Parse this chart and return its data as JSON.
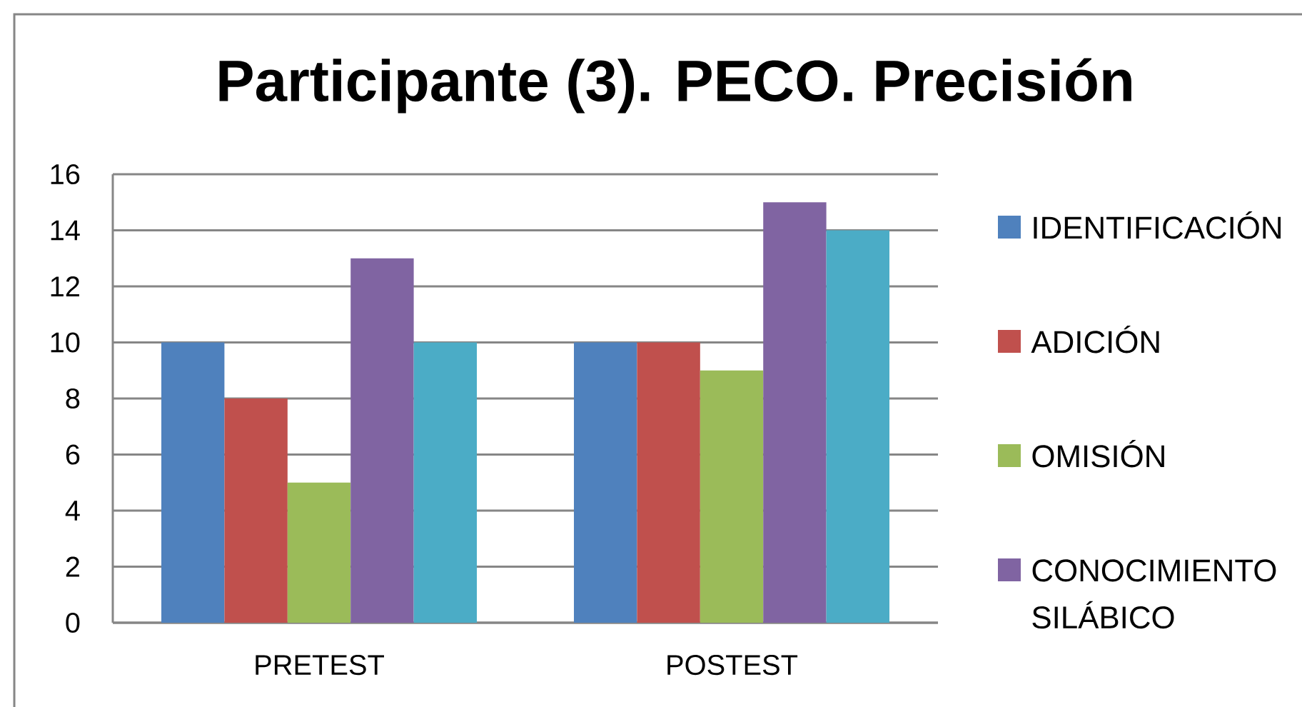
{
  "chart_data": {
    "type": "bar",
    "title": "Participante (3). PECO. Precisión",
    "categories": [
      "PRETEST",
      "POSTEST"
    ],
    "series": [
      {
        "name": "IDENTIFICACIÓN",
        "color": "#4f81bd",
        "values": [
          10,
          10
        ]
      },
      {
        "name": "ADICIÓN",
        "color": "#c0504d",
        "values": [
          8,
          10
        ]
      },
      {
        "name": "OMISIÓN",
        "color": "#9bbb59",
        "values": [
          5,
          9
        ]
      },
      {
        "name": "CONOCIMIENTO SILÁBICO",
        "color": "#8064a2",
        "values": [
          13,
          15
        ]
      },
      {
        "color": "#4bacc6",
        "values": [
          10,
          14
        ]
      }
    ],
    "ylim": [
      0,
      16
    ],
    "yticks": [
      0,
      2,
      4,
      6,
      8,
      10,
      12,
      14,
      16
    ],
    "grid": "y",
    "legend": "right"
  }
}
